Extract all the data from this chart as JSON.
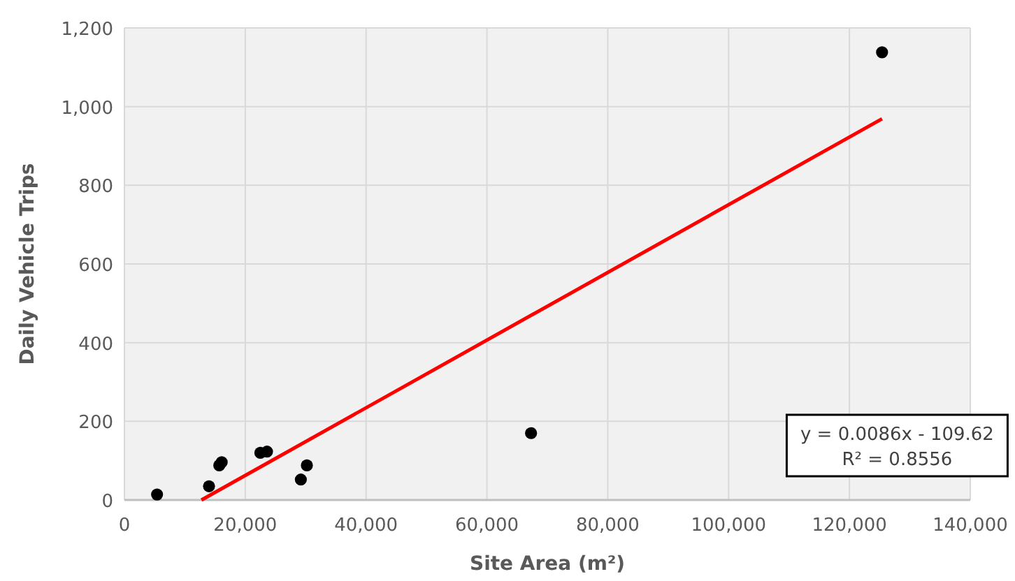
{
  "chart_data": {
    "type": "scatter",
    "xlabel": "Site Area (m²)",
    "ylabel": "Daily Vehicle Trips",
    "xlim": [
      0,
      140000
    ],
    "ylim": [
      0,
      1200
    ],
    "xticks": [
      {
        "value": 0,
        "label": "0"
      },
      {
        "value": 20000,
        "label": "20,000"
      },
      {
        "value": 40000,
        "label": "40,000"
      },
      {
        "value": 60000,
        "label": "60,000"
      },
      {
        "value": 80000,
        "label": "80,000"
      },
      {
        "value": 100000,
        "label": "100,000"
      },
      {
        "value": 120000,
        "label": "120,000"
      },
      {
        "value": 140000,
        "label": "140,000"
      }
    ],
    "yticks": [
      0,
      200,
      400,
      600,
      800,
      {
        "value": 1000,
        "label": "1,000"
      },
      {
        "value": 1200,
        "label": "1,200"
      }
    ],
    "grid": true,
    "x": [
      5400,
      14000,
      15700,
      16100,
      22500,
      23600,
      29200,
      30200,
      67300,
      125400
    ],
    "series": [
      {
        "color": "#000000",
        "marker": "circle",
        "values": [
          14,
          35,
          88,
          96,
          120,
          123,
          52,
          88,
          170,
          1138
        ]
      },
      {
        "type": "line",
        "color": "#ff0000",
        "marker": "none",
        "x": [
          12747,
          125400
        ],
        "values": [
          0,
          969
        ]
      }
    ],
    "annotations": [
      "y = 0.0086x - 109.62",
      "R² = 0.8556"
    ]
  }
}
